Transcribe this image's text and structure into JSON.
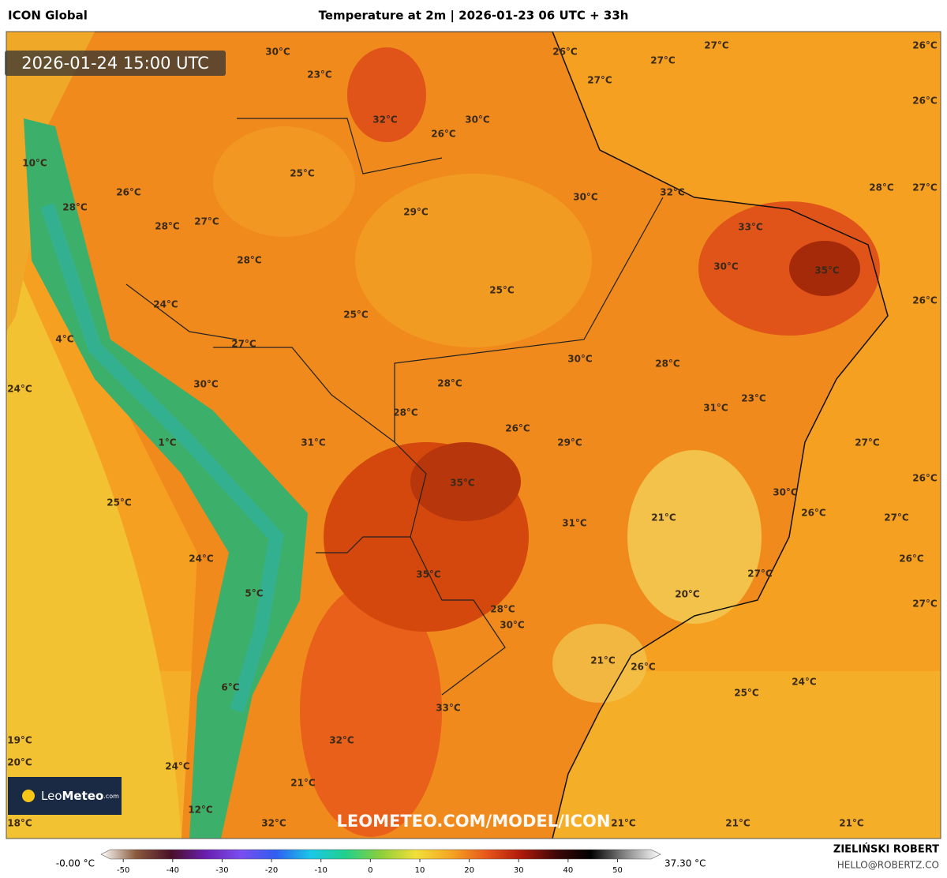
{
  "header": {
    "model": "ICON Global",
    "title": "Temperature at 2m | 2026-01-23 06 UTC + 33h",
    "valid_time": "2026-01-24 15:00 UTC"
  },
  "map": {
    "watermark": "LEOMETEO.COM/MODEL/ICON",
    "logo": {
      "name_light": "Leo",
      "name_bold": "Meteo",
      "suffix": ".com"
    },
    "labels": [
      "30°C",
      "23°C",
      "32°C",
      "30°C",
      "26°C",
      "26°C",
      "27°C",
      "27°C",
      "26°C",
      "27°C",
      "26°C",
      "10°C",
      "25°C",
      "26°C",
      "28°C",
      "30°C",
      "32°C",
      "28°C",
      "27°C",
      "29°C",
      "27°C",
      "28°C",
      "33°C",
      "28°C",
      "30°C",
      "35°C",
      "25°C",
      "26°C",
      "24°C",
      "25°C",
      "4°C",
      "27°C",
      "30°C",
      "28°C",
      "24°C",
      "30°C",
      "28°C",
      "23°C",
      "31°C",
      "28°C",
      "26°C",
      "1°C",
      "31°C",
      "29°C",
      "27°C",
      "35°C",
      "26°C",
      "30°C",
      "25°C",
      "21°C",
      "26°C",
      "27°C",
      "31°C",
      "24°C",
      "26°C",
      "35°C",
      "27°C",
      "5°C",
      "20°C",
      "28°C",
      "27°C",
      "30°C",
      "21°C",
      "26°C",
      "6°C",
      "24°C",
      "25°C",
      "33°C",
      "19°C",
      "32°C",
      "20°C",
      "24°C",
      "21°C",
      "12°C",
      "18°C",
      "32°C",
      "21°C",
      "21°C",
      "21°C"
    ]
  },
  "colorbar": {
    "min_label": "-0.00 °C",
    "max_label": "37.30 °C",
    "lim": [
      -54.5,
      58.7
    ],
    "ticks": [
      -50,
      -40,
      -30,
      -20,
      -10,
      0,
      10,
      20,
      30,
      40,
      50
    ],
    "colors": [
      "#ffffff",
      "#8a5a3c",
      "#4a0f28",
      "#6a1fb0",
      "#7a4ef0",
      "#2f5ef0",
      "#19c8e8",
      "#22d08a",
      "#8ccf3a",
      "#f2e03a",
      "#f5a623",
      "#e8581a",
      "#b01a0a",
      "#400808",
      "#000000",
      "#888888",
      "#ffffff"
    ]
  },
  "credit": {
    "author": "ZIELIŃSKI ROBERT",
    "email": "HELLO@ROBERTZ.CO"
  }
}
